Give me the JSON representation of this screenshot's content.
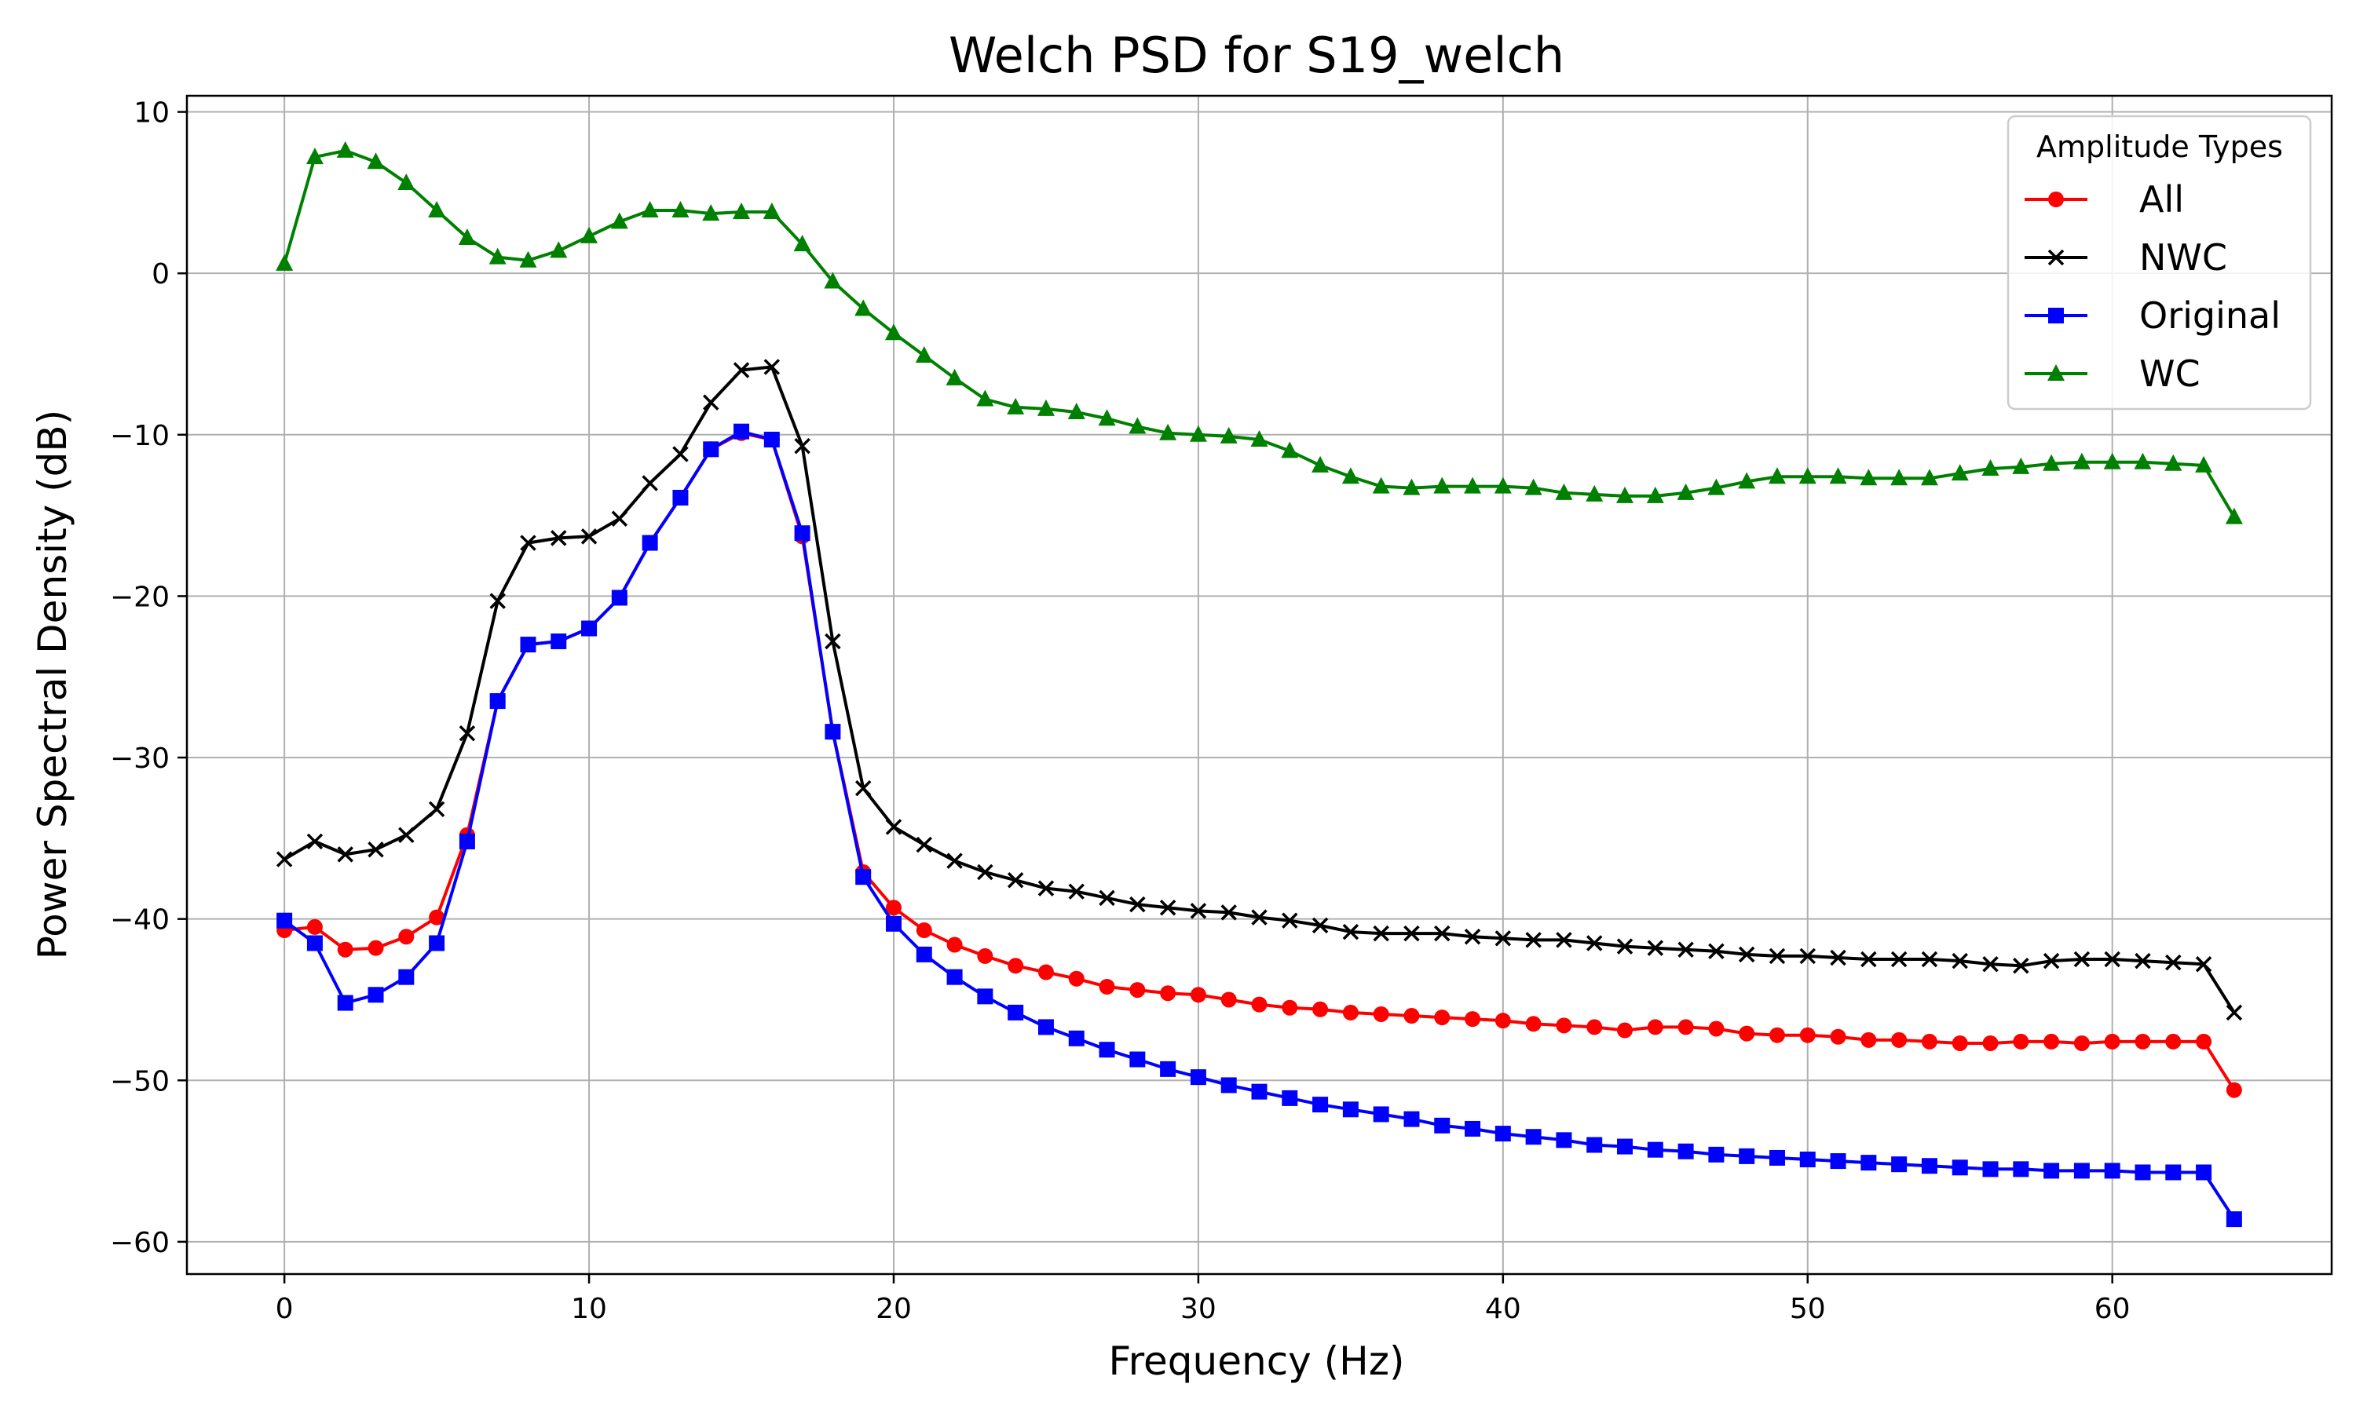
{
  "chart_data": {
    "type": "line",
    "title": "Welch PSD for S19_welch",
    "xlabel": "Frequency (Hz)",
    "ylabel": "Power Spectral Density (dB)",
    "xlim": [
      -3.2,
      67.2
    ],
    "ylim": [
      -62,
      11
    ],
    "xticks": [
      0,
      10,
      20,
      30,
      40,
      50,
      60
    ],
    "yticks": [
      10,
      0,
      -10,
      -20,
      -30,
      -40,
      -50,
      -60
    ],
    "xtick_labels": [
      "0",
      "10",
      "20",
      "30",
      "40",
      "50",
      "60"
    ],
    "ytick_labels": [
      "10",
      "0",
      "−10",
      "−20",
      "−30",
      "−40",
      "−50",
      "−60"
    ],
    "grid": true,
    "legend": {
      "title": "Amplitude Types",
      "position": "top-right"
    },
    "x": [
      0,
      1,
      2,
      3,
      4,
      5,
      6,
      7,
      8,
      9,
      10,
      11,
      12,
      13,
      14,
      15,
      16,
      17,
      18,
      19,
      20,
      21,
      22,
      23,
      24,
      25,
      26,
      27,
      28,
      29,
      30,
      31,
      32,
      33,
      34,
      35,
      36,
      37,
      38,
      39,
      40,
      41,
      42,
      43,
      44,
      45,
      46,
      47,
      48,
      49,
      50,
      51,
      52,
      53,
      54,
      55,
      56,
      57,
      58,
      59,
      60,
      61,
      62,
      63,
      64
    ],
    "series": [
      {
        "name": "All",
        "color": "#ff0000",
        "marker": "circle",
        "values": [
          -40.7,
          -40.5,
          -41.9,
          -41.8,
          -41.1,
          -39.9,
          -34.8,
          -26.5,
          -23.0,
          -22.8,
          -22.0,
          -20.1,
          -16.7,
          -13.9,
          -10.9,
          -9.9,
          -10.3,
          -16.3,
          -28.4,
          -37.1,
          -39.3,
          -40.7,
          -41.6,
          -42.3,
          -42.9,
          -43.3,
          -43.7,
          -44.2,
          -44.4,
          -44.6,
          -44.7,
          -45.0,
          -45.3,
          -45.5,
          -45.6,
          -45.8,
          -45.9,
          -46.0,
          -46.1,
          -46.2,
          -46.3,
          -46.5,
          -46.6,
          -46.7,
          -46.9,
          -46.7,
          -46.7,
          -46.8,
          -47.1,
          -47.2,
          -47.2,
          -47.3,
          -47.5,
          -47.5,
          -47.6,
          -47.7,
          -47.7,
          -47.6,
          -47.6,
          -47.7,
          -47.6,
          -47.6,
          -47.6,
          -47.6,
          -50.6
        ]
      },
      {
        "name": "NWC",
        "color": "#000000",
        "marker": "x",
        "values": [
          -36.3,
          -35.2,
          -36.0,
          -35.7,
          -34.8,
          -33.2,
          -28.5,
          -20.3,
          -16.7,
          -16.4,
          -16.3,
          -15.2,
          -13.0,
          -11.2,
          -8.0,
          -6.0,
          -5.8,
          -10.7,
          -22.8,
          -31.9,
          -34.3,
          -35.4,
          -36.4,
          -37.1,
          -37.6,
          -38.1,
          -38.3,
          -38.7,
          -39.1,
          -39.3,
          -39.5,
          -39.6,
          -39.9,
          -40.1,
          -40.4,
          -40.8,
          -40.9,
          -40.9,
          -40.9,
          -41.1,
          -41.2,
          -41.3,
          -41.3,
          -41.5,
          -41.7,
          -41.8,
          -41.9,
          -42.0,
          -42.2,
          -42.3,
          -42.3,
          -42.4,
          -42.5,
          -42.5,
          -42.5,
          -42.6,
          -42.8,
          -42.9,
          -42.6,
          -42.5,
          -42.5,
          -42.6,
          -42.7,
          -42.8,
          -45.8
        ]
      },
      {
        "name": "Original",
        "color": "#0000ff",
        "marker": "square",
        "values": [
          -40.1,
          -41.5,
          -45.2,
          -44.7,
          -43.6,
          -41.5,
          -35.2,
          -26.5,
          -23.0,
          -22.8,
          -22.0,
          -20.1,
          -16.7,
          -13.9,
          -10.9,
          -9.8,
          -10.3,
          -16.1,
          -28.4,
          -37.4,
          -40.3,
          -42.2,
          -43.6,
          -44.8,
          -45.8,
          -46.7,
          -47.4,
          -48.1,
          -48.7,
          -49.3,
          -49.8,
          -50.3,
          -50.7,
          -51.1,
          -51.5,
          -51.8,
          -52.1,
          -52.4,
          -52.8,
          -53.0,
          -53.3,
          -53.5,
          -53.7,
          -54.0,
          -54.1,
          -54.3,
          -54.4,
          -54.6,
          -54.7,
          -54.8,
          -54.9,
          -55.0,
          -55.1,
          -55.2,
          -55.3,
          -55.4,
          -55.5,
          -55.5,
          -55.6,
          -55.6,
          -55.6,
          -55.7,
          -55.7,
          -55.7,
          -58.6
        ]
      },
      {
        "name": "WC",
        "color": "#008000",
        "marker": "triangle",
        "values": [
          0.6,
          7.2,
          7.6,
          6.9,
          5.6,
          3.9,
          2.2,
          1.0,
          0.8,
          1.4,
          2.3,
          3.2,
          3.9,
          3.9,
          3.7,
          3.8,
          3.8,
          1.8,
          -0.5,
          -2.2,
          -3.7,
          -5.1,
          -6.5,
          -7.8,
          -8.3,
          -8.4,
          -8.6,
          -9.0,
          -9.5,
          -9.9,
          -10.0,
          -10.1,
          -10.3,
          -11.0,
          -11.9,
          -12.6,
          -13.2,
          -13.3,
          -13.2,
          -13.2,
          -13.2,
          -13.3,
          -13.6,
          -13.7,
          -13.8,
          -13.8,
          -13.6,
          -13.3,
          -12.9,
          -12.6,
          -12.6,
          -12.6,
          -12.7,
          -12.7,
          -12.7,
          -12.4,
          -12.1,
          -12.0,
          -11.8,
          -11.7,
          -11.7,
          -11.7,
          -11.8,
          -11.9,
          -15.1
        ]
      }
    ]
  }
}
